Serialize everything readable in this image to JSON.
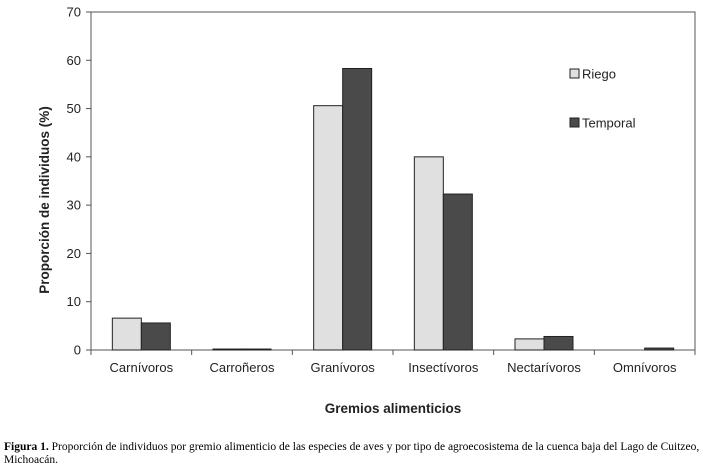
{
  "chart_data": {
    "type": "bar",
    "categories": [
      "Carnívoros",
      "Carroñeros",
      "Granívoros",
      "Insectívoros",
      "Nectarívoros",
      "Omnívoros"
    ],
    "series": [
      {
        "name": "Riego",
        "color": "#e0e0e0",
        "values": [
          6.6,
          0.2,
          50.6,
          40.0,
          2.3,
          0.0
        ]
      },
      {
        "name": "Temporal",
        "color": "#4a4a4a",
        "values": [
          5.6,
          0.2,
          58.3,
          32.3,
          2.8,
          0.4
        ]
      }
    ],
    "xlabel": "Gremios alimenticios",
    "ylabel": "Proporción de individuos (%)",
    "ylim": [
      0,
      70
    ],
    "yticks": [
      0,
      10,
      20,
      30,
      40,
      50,
      60,
      70
    ],
    "grid": false,
    "legend_position": "top-right"
  },
  "caption": {
    "label": "Figura 1.",
    "text": "Proporción de individuos por gremio alimenticio de las especies de aves y por tipo de agroecosistema de la cuenca baja del Lago de Cuitzeo, Michoacán."
  }
}
